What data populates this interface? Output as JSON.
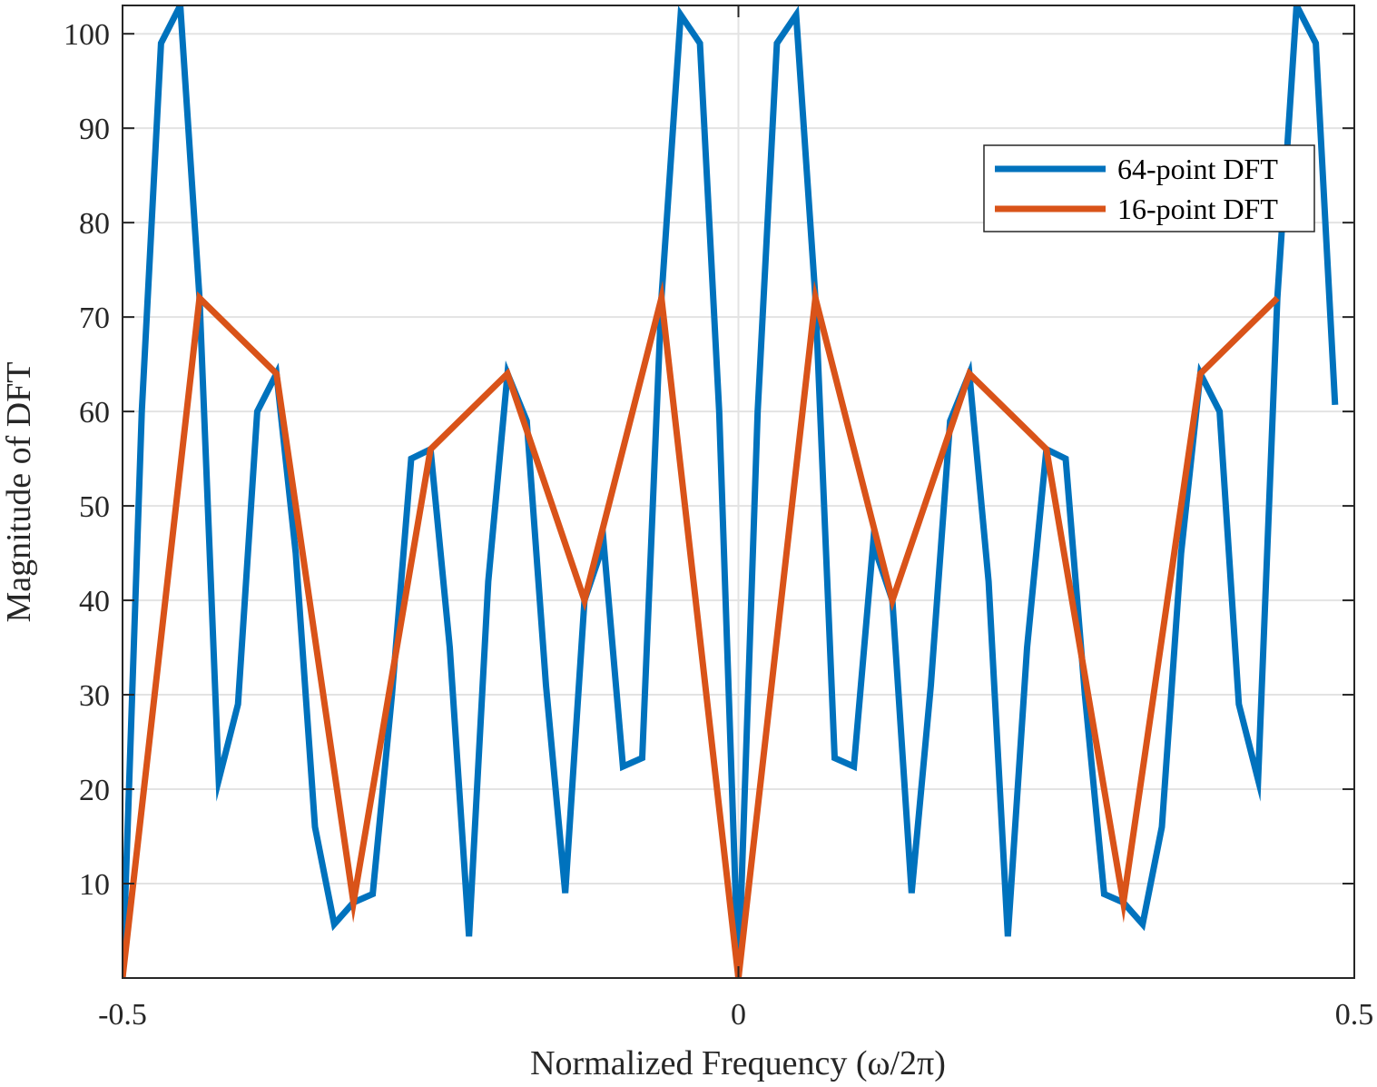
{
  "chart_data": {
    "type": "line",
    "title": "",
    "xlabel": "Normalized Frequency (ω/2π)",
    "ylabel": "Magnitude of DFT",
    "xlim": [
      -0.5,
      0.5
    ],
    "ylim": [
      0,
      103
    ],
    "xticks": [
      -0.5,
      0,
      0.5
    ],
    "xtick_labels": [
      "-0.5",
      "0",
      "0.5"
    ],
    "yticks": [
      10,
      20,
      30,
      40,
      50,
      60,
      70,
      80,
      90,
      100
    ],
    "ytick_labels": [
      "10",
      "20",
      "30",
      "40",
      "50",
      "60",
      "70",
      "80",
      "90",
      "100"
    ],
    "grid": true,
    "legend": "top-right",
    "series": [
      {
        "name": "64-point DFT",
        "color": "#0072BD",
        "x": [
          -0.5,
          -0.484375,
          -0.46875,
          -0.453125,
          -0.4375,
          -0.421875,
          -0.40625,
          -0.390625,
          -0.375,
          -0.359375,
          -0.34375,
          -0.328125,
          -0.3125,
          -0.296875,
          -0.28125,
          -0.265625,
          -0.25,
          -0.234375,
          -0.21875,
          -0.203125,
          -0.1875,
          -0.171875,
          -0.15625,
          -0.140625,
          -0.125,
          -0.109375,
          -0.09375,
          -0.078125,
          -0.0625,
          -0.046875,
          -0.03125,
          -0.015625,
          0,
          0.015625,
          0.03125,
          0.046875,
          0.0625,
          0.078125,
          0.09375,
          0.109375,
          0.125,
          0.140625,
          0.15625,
          0.171875,
          0.1875,
          0.203125,
          0.21875,
          0.234375,
          0.25,
          0.265625,
          0.28125,
          0.296875,
          0.3125,
          0.328125,
          0.34375,
          0.359375,
          0.375,
          0.390625,
          0.40625,
          0.421875,
          0.4375,
          0.453125,
          0.46875,
          0.484375
        ],
        "values": [
          0,
          60,
          99,
          103,
          72,
          21,
          29,
          60,
          64,
          45,
          16,
          5.7,
          8,
          8.9,
          30,
          55,
          56,
          35,
          4.4,
          42,
          64,
          59,
          31,
          9,
          40,
          46,
          22.4,
          23.3,
          72,
          102,
          99,
          60,
          0,
          60,
          99,
          102,
          72,
          23.3,
          22.4,
          46,
          40,
          9,
          31,
          59,
          64,
          42,
          4.4,
          35,
          56,
          55,
          30,
          8.9,
          8,
          5.7,
          16,
          45,
          64,
          60,
          29,
          21,
          72,
          103,
          99,
          60.7
        ]
      },
      {
        "name": "16-point DFT",
        "color": "#D95319",
        "x": [
          -0.5,
          -0.4375,
          -0.375,
          -0.3125,
          -0.25,
          -0.1875,
          -0.125,
          -0.0625,
          0,
          0.0625,
          0.125,
          0.1875,
          0.25,
          0.3125,
          0.375,
          0.4375
        ],
        "values": [
          0,
          72,
          64,
          8,
          56,
          64,
          40,
          72,
          0,
          72,
          40,
          64,
          56,
          8,
          64,
          72
        ]
      }
    ]
  }
}
